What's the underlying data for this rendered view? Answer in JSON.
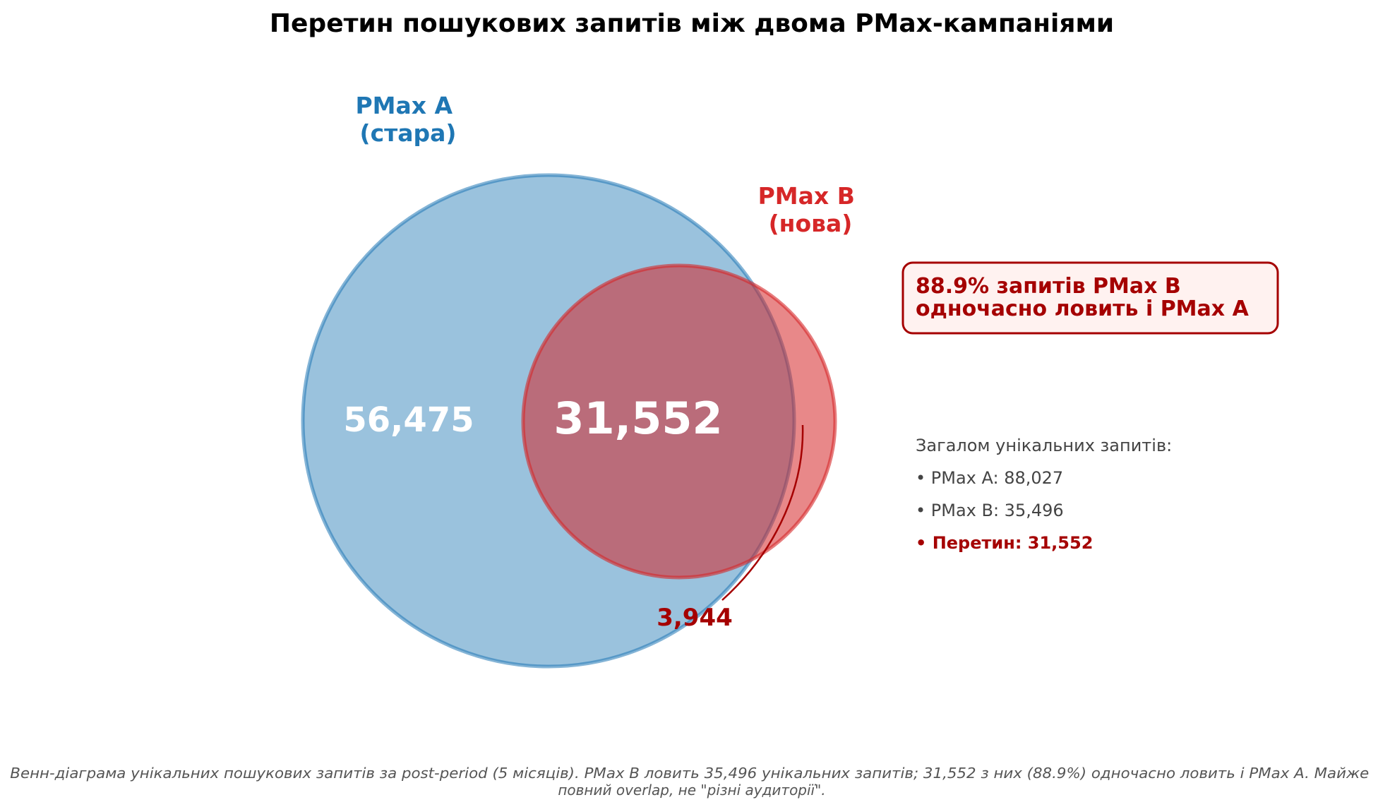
{
  "chart_data": {
    "type": "venn",
    "title": "Перетин пошукових запитів між двома PMax-кампаніями",
    "sets": [
      {
        "id": "A",
        "label_line1": "PMax A",
        "label_line2": "(стара)",
        "total": 88027,
        "only_value": "56,475",
        "color": "#1f77b4"
      },
      {
        "id": "B",
        "label_line1": "PMax B",
        "label_line2": "(нова)",
        "total": 35496,
        "only_value": "3,944",
        "color": "#d62728"
      }
    ],
    "intersection": {
      "value": "31,552",
      "count": 31552
    }
  },
  "callout": {
    "line1": "88.9% запитів PMax B",
    "line2": "одночасно ловить і PMax A",
    "border_color": "#a50000",
    "text_color": "#a50000"
  },
  "summary": {
    "heading": "Загалом унікальних запитів:",
    "line_a": "• PMax A: 88,027",
    "line_b": "• PMax B: 35,496",
    "line_intersection": "• Перетин: 31,552"
  },
  "caption": {
    "line1": "Венн-діаграма унікальних пошукових запитів за post-period (5 місяців). PMax B ловить 35,496 унікальних запитів; 31,552 з них (88.9%) одночасно ловить і PMax A. Майже",
    "line2": "повний overlap, не \"різні аудиторії\"."
  }
}
